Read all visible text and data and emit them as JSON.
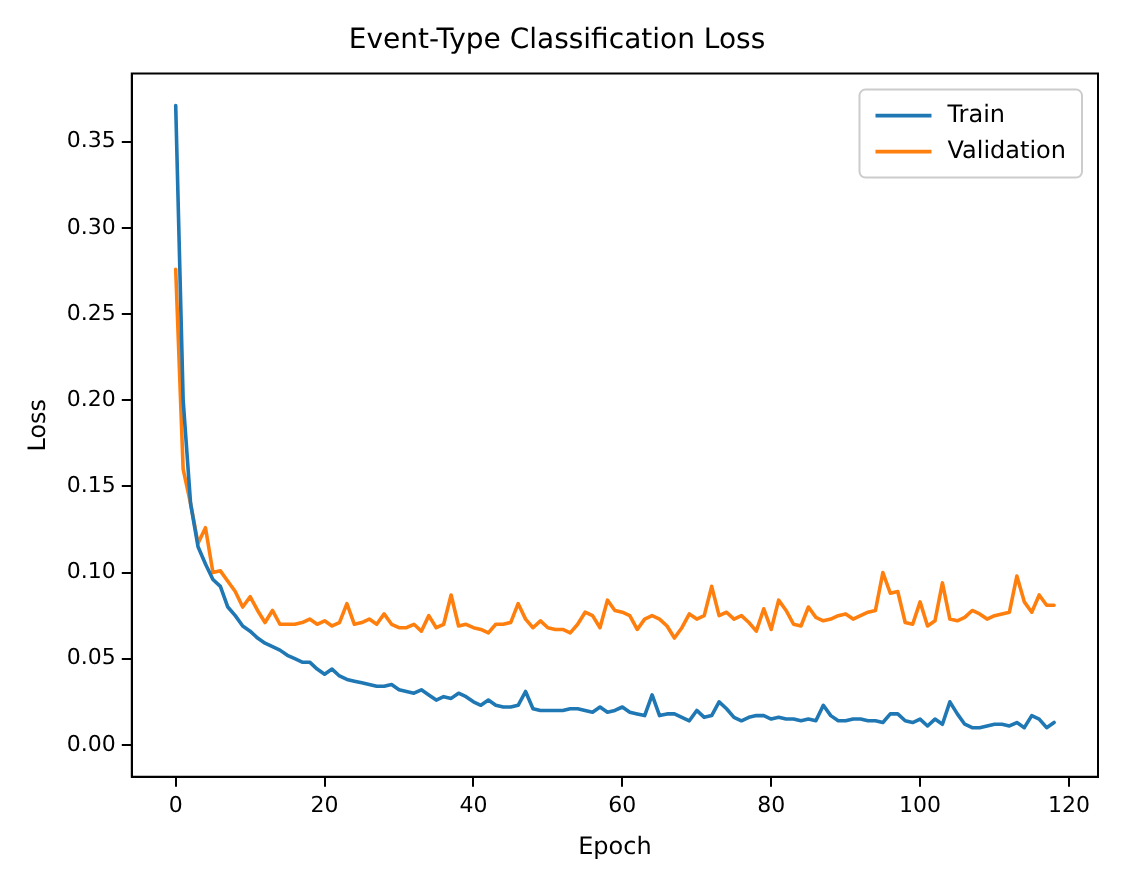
{
  "chart_data": {
    "type": "line",
    "title": "Event-Type Classification Loss",
    "xlabel": "Epoch",
    "ylabel": "Loss",
    "x": [
      0,
      1,
      2,
      3,
      4,
      5,
      6,
      7,
      8,
      9,
      10,
      11,
      12,
      13,
      14,
      15,
      16,
      17,
      18,
      19,
      20,
      21,
      22,
      23,
      24,
      25,
      26,
      27,
      28,
      29,
      30,
      31,
      32,
      33,
      34,
      35,
      36,
      37,
      38,
      39,
      40,
      41,
      42,
      43,
      44,
      45,
      46,
      47,
      48,
      49,
      50,
      51,
      52,
      53,
      54,
      55,
      56,
      57,
      58,
      59,
      60,
      61,
      62,
      63,
      64,
      65,
      66,
      67,
      68,
      69,
      70,
      71,
      72,
      73,
      74,
      75,
      76,
      77,
      78,
      79,
      80,
      81,
      82,
      83,
      84,
      85,
      86,
      87,
      88,
      89,
      90,
      91,
      92,
      93,
      94,
      95,
      96,
      97,
      98,
      99,
      100,
      101,
      102,
      103,
      104,
      105,
      106,
      107,
      108,
      109,
      110,
      111,
      112,
      113,
      114,
      115,
      116,
      117,
      118
    ],
    "series": [
      {
        "name": "Train",
        "color": "#1f77b4",
        "values": [
          0.371,
          0.2,
          0.14,
          0.115,
          0.105,
          0.096,
          0.092,
          0.08,
          0.075,
          0.069,
          0.066,
          0.062,
          0.059,
          0.057,
          0.055,
          0.052,
          0.05,
          0.048,
          0.048,
          0.044,
          0.041,
          0.044,
          0.04,
          0.038,
          0.037,
          0.036,
          0.035,
          0.034,
          0.034,
          0.035,
          0.032,
          0.031,
          0.03,
          0.032,
          0.029,
          0.026,
          0.028,
          0.027,
          0.03,
          0.028,
          0.025,
          0.023,
          0.026,
          0.023,
          0.022,
          0.022,
          0.023,
          0.031,
          0.021,
          0.02,
          0.02,
          0.02,
          0.02,
          0.021,
          0.021,
          0.02,
          0.019,
          0.022,
          0.019,
          0.02,
          0.022,
          0.019,
          0.018,
          0.017,
          0.029,
          0.017,
          0.018,
          0.018,
          0.016,
          0.014,
          0.02,
          0.016,
          0.017,
          0.025,
          0.021,
          0.016,
          0.014,
          0.016,
          0.017,
          0.017,
          0.015,
          0.016,
          0.015,
          0.015,
          0.014,
          0.015,
          0.014,
          0.023,
          0.017,
          0.014,
          0.014,
          0.015,
          0.015,
          0.014,
          0.014,
          0.013,
          0.018,
          0.018,
          0.014,
          0.013,
          0.015,
          0.011,
          0.015,
          0.012,
          0.025,
          0.018,
          0.012,
          0.01,
          0.01,
          0.011,
          0.012,
          0.012,
          0.011,
          0.013,
          0.01,
          0.017,
          0.015,
          0.01,
          0.013
        ]
      },
      {
        "name": "Validation",
        "color": "#ff7f0e",
        "values": [
          0.276,
          0.16,
          0.14,
          0.117,
          0.126,
          0.1,
          0.101,
          0.095,
          0.089,
          0.08,
          0.086,
          0.078,
          0.071,
          0.078,
          0.07,
          0.07,
          0.07,
          0.071,
          0.073,
          0.07,
          0.072,
          0.069,
          0.071,
          0.082,
          0.07,
          0.071,
          0.073,
          0.07,
          0.076,
          0.07,
          0.068,
          0.068,
          0.07,
          0.066,
          0.075,
          0.068,
          0.07,
          0.087,
          0.069,
          0.07,
          0.068,
          0.067,
          0.065,
          0.07,
          0.07,
          0.071,
          0.082,
          0.073,
          0.068,
          0.072,
          0.068,
          0.067,
          0.067,
          0.065,
          0.07,
          0.077,
          0.075,
          0.068,
          0.084,
          0.078,
          0.077,
          0.075,
          0.067,
          0.073,
          0.075,
          0.073,
          0.069,
          0.062,
          0.068,
          0.076,
          0.073,
          0.075,
          0.092,
          0.075,
          0.077,
          0.073,
          0.075,
          0.071,
          0.066,
          0.079,
          0.067,
          0.084,
          0.078,
          0.07,
          0.069,
          0.08,
          0.074,
          0.072,
          0.073,
          0.075,
          0.076,
          0.073,
          0.075,
          0.077,
          0.078,
          0.1,
          0.088,
          0.089,
          0.071,
          0.07,
          0.083,
          0.069,
          0.072,
          0.094,
          0.073,
          0.072,
          0.074,
          0.078,
          0.076,
          0.073,
          0.075,
          0.076,
          0.077,
          0.098,
          0.083,
          0.077,
          0.087,
          0.081,
          0.081
        ]
      }
    ],
    "xlim": [
      -5.9,
      123.9
    ],
    "xticks": [
      0,
      20,
      40,
      60,
      80,
      100,
      120
    ],
    "ylim": [
      -0.0185,
      0.3895
    ],
    "yticks": [
      {
        "value": 0,
        "label": "0.00"
      },
      0.05,
      {
        "value": 0.1,
        "label": "0.10"
      },
      0.15,
      {
        "value": 0.2,
        "label": "0.20"
      },
      0.25,
      {
        "value": 0.3,
        "label": "0.30"
      },
      0.35
    ],
    "grid": false,
    "legend": "top right",
    "line_style": "solid",
    "marker": "none"
  }
}
